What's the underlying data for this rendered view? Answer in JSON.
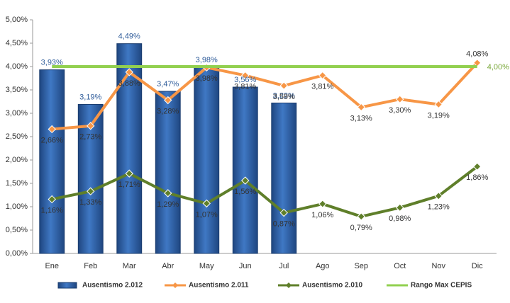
{
  "chart_data": {
    "type": "bar",
    "categories": [
      "Ene",
      "Feb",
      "Mar",
      "Abr",
      "May",
      "Jun",
      "Jul",
      "Ago",
      "Sep",
      "Oct",
      "Nov",
      "Dic"
    ],
    "ylim": [
      0,
      5
    ],
    "yticks": [
      {
        "value": 0,
        "label": "0,00%"
      },
      {
        "value": 0.5,
        "label": "0,50%"
      },
      {
        "value": 1,
        "label": "1,00%"
      },
      {
        "value": 1.5,
        "label": "1,50%"
      },
      {
        "value": 2,
        "label": "2,00%"
      },
      {
        "value": 2.5,
        "label": "2,50%"
      },
      {
        "value": 3,
        "label": "3,00%"
      },
      {
        "value": 3.5,
        "label": "3,50%"
      },
      {
        "value": 4,
        "label": "4,00%"
      },
      {
        "value": 4.5,
        "label": "4,50%"
      },
      {
        "value": 5,
        "label": "5,00%"
      }
    ],
    "legend": "bottom",
    "series": [
      {
        "name": "Ausentismo 2.012",
        "type": "bar",
        "color": "#2f62a8",
        "values": [
          3.93,
          3.19,
          4.49,
          3.47,
          3.98,
          3.56,
          3.22,
          null,
          null,
          null,
          null,
          null
        ],
        "value_labels": [
          "3,93%",
          "3,19%",
          "4,49%",
          "3,47%",
          "3,98%",
          "3,56%",
          "3,22%",
          null,
          null,
          null,
          null,
          null
        ]
      },
      {
        "name": "Ausentismo 2.011",
        "type": "line",
        "color": "#f79646",
        "values": [
          2.66,
          2.73,
          3.88,
          3.28,
          3.98,
          3.81,
          3.59,
          3.81,
          3.13,
          3.3,
          3.19,
          4.08
        ],
        "value_labels": [
          "2,66%",
          "2,73%",
          "3,88%",
          "3,28%",
          "3,98%",
          "3,81%",
          "3,59%",
          "3,81%",
          "3,13%",
          "3,30%",
          "3,19%",
          "4,08%"
        ]
      },
      {
        "name": "Ausentismo 2.010",
        "type": "line",
        "color": "#5f7f2a",
        "values": [
          1.16,
          1.33,
          1.71,
          1.29,
          1.07,
          1.56,
          0.87,
          1.06,
          0.79,
          0.98,
          1.23,
          1.86
        ],
        "value_labels": [
          "1,16%",
          "1,33%",
          "1,71%",
          "1,29%",
          "1,07%",
          "1,56%",
          "0,87%",
          "1,06%",
          "0,79%",
          "0,98%",
          "1,23%",
          "1,86%"
        ]
      },
      {
        "name": "Rango Max CEPIS",
        "type": "line",
        "color": "#92d050",
        "values": [
          4,
          4,
          4,
          4,
          4,
          4,
          4,
          4,
          4,
          4,
          4,
          4
        ],
        "value_labels": [
          null,
          null,
          null,
          null,
          null,
          null,
          null,
          null,
          null,
          null,
          null,
          "4,00%"
        ]
      }
    ]
  }
}
